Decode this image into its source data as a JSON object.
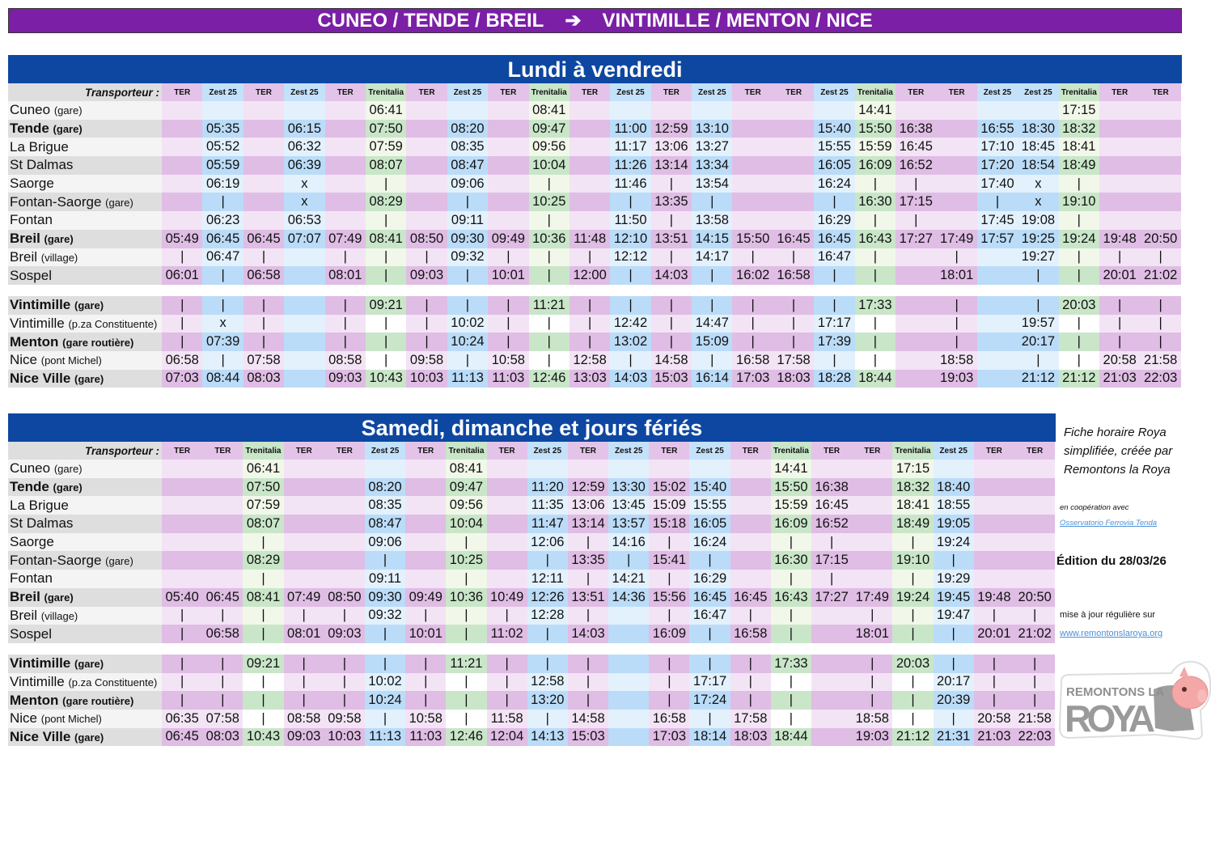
{
  "title": {
    "left": "CUNEO / TENDE / BREIL",
    "arrow": "➔",
    "right": "VINTIMILLE / MENTON / NICE"
  },
  "colors": {
    "title_bg": "#7b1fa6",
    "block_bg": "#0d47a1",
    "TER": "#dfbde4",
    "Zest 25": "#bbdcf8",
    "Trenitalia": "#c9e6c9"
  },
  "transporter_label": "Transporteur :",
  "stations": [
    {
      "name": "Cuneo",
      "suffix": "(gare)",
      "bold": false
    },
    {
      "name": "Tende",
      "suffix": "(gare)",
      "bold": true
    },
    {
      "name": "La Brigue",
      "suffix": "",
      "bold": false
    },
    {
      "name": "St Dalmas",
      "suffix": "",
      "bold": false
    },
    {
      "name": "Saorge",
      "suffix": "",
      "bold": false
    },
    {
      "name": "Fontan-Saorge",
      "suffix": "(gare)",
      "bold": false
    },
    {
      "name": "Fontan",
      "suffix": "",
      "bold": false
    },
    {
      "name": "Breil",
      "suffix": "(gare)",
      "bold": true
    },
    {
      "name": "Breil",
      "suffix": "(village)",
      "bold": false
    },
    {
      "name": "Sospel",
      "suffix": "",
      "bold": false
    },
    {
      "name": "Vintimille",
      "suffix": "(gare)",
      "bold": true
    },
    {
      "name": "Vintimille",
      "suffix": "(p.za Constituente)",
      "bold": false
    },
    {
      "name": "Menton",
      "suffix": "(gare routière)",
      "bold": true
    },
    {
      "name": "Nice",
      "suffix": "(pont Michel)",
      "bold": false
    },
    {
      "name": "Nice Ville",
      "suffix": "(gare)",
      "bold": true
    }
  ],
  "tables": [
    {
      "title": "Lundi à vendredi",
      "carriers": [
        "TER",
        "Zest 25",
        "TER",
        "Zest 25",
        "TER",
        "Trenitalia",
        "TER",
        "Zest 25",
        "TER",
        "Trenitalia",
        "TER",
        "Zest 25",
        "TER",
        "Zest 25",
        "TER",
        "TER",
        "Zest 25",
        "Trenitalia",
        "TER",
        "TER",
        "Zest 25",
        "Zest 25",
        "Trenitalia",
        "TER",
        "TER"
      ],
      "times": [
        [
          "",
          "",
          "",
          "",
          "",
          "06:41",
          "",
          "",
          "",
          "08:41",
          "",
          "",
          "",
          "",
          "",
          "",
          "",
          "14:41",
          "",
          "",
          "",
          "",
          "17:15",
          "",
          ""
        ],
        [
          "",
          "05:35",
          "",
          "06:15",
          "",
          "07:50",
          "",
          "08:20",
          "",
          "09:47",
          "",
          "11:00",
          "12:59",
          "13:10",
          "",
          "",
          "15:40",
          "15:50",
          "16:38",
          "",
          "16:55",
          "18:30",
          "18:32",
          "",
          ""
        ],
        [
          "",
          "05:52",
          "",
          "06:32",
          "",
          "07:59",
          "",
          "08:35",
          "",
          "09:56",
          "",
          "11:17",
          "13:06",
          "13:27",
          "",
          "",
          "15:55",
          "15:59",
          "16:45",
          "",
          "17:10",
          "18:45",
          "18:41",
          "",
          ""
        ],
        [
          "",
          "05:59",
          "",
          "06:39",
          "",
          "08:07",
          "",
          "08:47",
          "",
          "10:04",
          "",
          "11:26",
          "13:14",
          "13:34",
          "",
          "",
          "16:05",
          "16:09",
          "16:52",
          "",
          "17:20",
          "18:54",
          "18:49",
          "",
          ""
        ],
        [
          "",
          "06:19",
          "",
          "x",
          "",
          "|",
          "",
          "09:06",
          "",
          "|",
          "",
          "11:46",
          "|",
          "13:54",
          "",
          "",
          "16:24",
          "|",
          "|",
          "",
          "17:40",
          "x",
          "|",
          "",
          ""
        ],
        [
          "",
          "|",
          "",
          "x",
          "",
          "08:29",
          "",
          "|",
          "",
          "10:25",
          "",
          "|",
          "13:35",
          "|",
          "",
          "",
          "|",
          "16:30",
          "17:15",
          "",
          "|",
          "x",
          "19:10",
          "",
          ""
        ],
        [
          "",
          "06:23",
          "",
          "06:53",
          "",
          "|",
          "",
          "09:11",
          "",
          "|",
          "",
          "11:50",
          "|",
          "13:58",
          "",
          "",
          "16:29",
          "|",
          "|",
          "",
          "17:45",
          "19:08",
          "|",
          "",
          ""
        ],
        [
          "05:49",
          "06:45",
          "06:45",
          "07:07",
          "07:49",
          "08:41",
          "08:50",
          "09:30",
          "09:49",
          "10:36",
          "11:48",
          "12:10",
          "13:51",
          "14:15",
          "15:50",
          "16:45",
          "16:45",
          "16:43",
          "17:27",
          "17:49",
          "17:57",
          "19:25",
          "19:24",
          "19:48",
          "20:50"
        ],
        [
          "|",
          "06:47",
          "|",
          "",
          "|",
          "|",
          "|",
          "09:32",
          "|",
          "|",
          "|",
          "12:12",
          "|",
          "14:17",
          "|",
          "|",
          "16:47",
          "|",
          "",
          "|",
          "",
          "19:27",
          "|",
          "|",
          "|"
        ],
        [
          "06:01",
          "|",
          "06:58",
          "",
          "08:01",
          "|",
          "09:03",
          "|",
          "10:01",
          "|",
          "12:00",
          "|",
          "14:03",
          "|",
          "16:02",
          "16:58",
          "|",
          "|",
          "",
          "18:01",
          "",
          "|",
          "|",
          "20:01",
          "21:02"
        ],
        [
          "|",
          "|",
          "|",
          "",
          "|",
          "09:21",
          "|",
          "|",
          "|",
          "11:21",
          "|",
          "|",
          "|",
          "|",
          "|",
          "|",
          "|",
          "17:33",
          "",
          "|",
          "",
          "|",
          "20:03",
          "|",
          "|"
        ],
        [
          "|",
          "x",
          "|",
          "",
          "|",
          "|",
          "|",
          "10:02",
          "|",
          "|",
          "|",
          "12:42",
          "|",
          "14:47",
          "|",
          "|",
          "17:17",
          "|",
          "",
          "|",
          "",
          "19:57",
          "|",
          "|",
          "|"
        ],
        [
          "|",
          "07:39",
          "|",
          "",
          "|",
          "|",
          "|",
          "10:24",
          "|",
          "|",
          "|",
          "13:02",
          "|",
          "15:09",
          "|",
          "|",
          "17:39",
          "|",
          "",
          "|",
          "",
          "20:17",
          "|",
          "|",
          "|"
        ],
        [
          "06:58",
          "|",
          "07:58",
          "",
          "08:58",
          "|",
          "09:58",
          "|",
          "10:58",
          "|",
          "12:58",
          "|",
          "14:58",
          "|",
          "16:58",
          "17:58",
          "|",
          "|",
          "",
          "18:58",
          "",
          "|",
          "|",
          "20:58",
          "21:58"
        ],
        [
          "07:03",
          "08:44",
          "08:03",
          "",
          "09:03",
          "10:43",
          "10:03",
          "11:13",
          "11:03",
          "12:46",
          "13:03",
          "14:03",
          "15:03",
          "16:14",
          "17:03",
          "18:03",
          "18:28",
          "18:44",
          "",
          "19:03",
          "",
          "21:12",
          "21:12",
          "21:03",
          "22:03"
        ]
      ]
    },
    {
      "title": "Samedi, dimanche et jours fériés",
      "carriers": [
        "TER",
        "TER",
        "Trenitalia",
        "TER",
        "TER",
        "Zest 25",
        "TER",
        "Trenitalia",
        "TER",
        "Zest 25",
        "TER",
        "Zest 25",
        "TER",
        "Zest 25",
        "TER",
        "Trenitalia",
        "TER",
        "TER",
        "Trenitalia",
        "Zest 25",
        "TER",
        "TER"
      ],
      "times": [
        [
          "",
          "",
          "06:41",
          "",
          "",
          "",
          "",
          "08:41",
          "",
          "",
          "",
          "",
          "",
          "",
          "",
          "14:41",
          "",
          "",
          "17:15",
          "",
          "",
          ""
        ],
        [
          "",
          "",
          "07:50",
          "",
          "",
          "08:20",
          "",
          "09:47",
          "",
          "11:20",
          "12:59",
          "13:30",
          "15:02",
          "15:40",
          "",
          "15:50",
          "16:38",
          "",
          "18:32",
          "18:40",
          "",
          ""
        ],
        [
          "",
          "",
          "07:59",
          "",
          "",
          "08:35",
          "",
          "09:56",
          "",
          "11:35",
          "13:06",
          "13:45",
          "15:09",
          "15:55",
          "",
          "15:59",
          "16:45",
          "",
          "18:41",
          "18:55",
          "",
          ""
        ],
        [
          "",
          "",
          "08:07",
          "",
          "",
          "08:47",
          "",
          "10:04",
          "",
          "11:47",
          "13:14",
          "13:57",
          "15:18",
          "16:05",
          "",
          "16:09",
          "16:52",
          "",
          "18:49",
          "19:05",
          "",
          ""
        ],
        [
          "",
          "",
          "|",
          "",
          "",
          "09:06",
          "",
          "|",
          "",
          "12:06",
          "|",
          "14:16",
          "|",
          "16:24",
          "",
          "|",
          "|",
          "",
          "|",
          "19:24",
          "",
          ""
        ],
        [
          "",
          "",
          "08:29",
          "",
          "",
          "|",
          "",
          "10:25",
          "",
          "|",
          "13:35",
          "|",
          "15:41",
          "|",
          "",
          "16:30",
          "17:15",
          "",
          "19:10",
          "|",
          "",
          ""
        ],
        [
          "",
          "",
          "|",
          "",
          "",
          "09:11",
          "",
          "|",
          "",
          "12:11",
          "|",
          "14:21",
          "|",
          "16:29",
          "",
          "|",
          "|",
          "",
          "|",
          "19:29",
          "",
          ""
        ],
        [
          "05:40",
          "06:45",
          "08:41",
          "07:49",
          "08:50",
          "09:30",
          "09:49",
          "10:36",
          "10:49",
          "12:26",
          "13:51",
          "14:36",
          "15:56",
          "16:45",
          "16:45",
          "16:43",
          "17:27",
          "17:49",
          "19:24",
          "19:45",
          "19:48",
          "20:50"
        ],
        [
          "|",
          "|",
          "|",
          "|",
          "|",
          "09:32",
          "|",
          "|",
          "|",
          "12:28",
          "|",
          "",
          "|",
          "16:47",
          "|",
          "|",
          "",
          "|",
          "|",
          "19:47",
          "|",
          "|"
        ],
        [
          "|",
          "06:58",
          "|",
          "08:01",
          "09:03",
          "|",
          "10:01",
          "|",
          "11:02",
          "|",
          "14:03",
          "",
          "16:09",
          "|",
          "16:58",
          "|",
          "",
          "18:01",
          "|",
          "|",
          "20:01",
          "21:02"
        ],
        [
          "|",
          "|",
          "09:21",
          "|",
          "|",
          "|",
          "|",
          "11:21",
          "|",
          "|",
          "|",
          "",
          "|",
          "|",
          "|",
          "17:33",
          "",
          "|",
          "20:03",
          "|",
          "|",
          "|"
        ],
        [
          "|",
          "|",
          "|",
          "|",
          "|",
          "10:02",
          "|",
          "|",
          "|",
          "12:58",
          "|",
          "",
          "|",
          "17:17",
          "|",
          "|",
          "",
          "|",
          "|",
          "20:17",
          "|",
          "|"
        ],
        [
          "|",
          "|",
          "|",
          "|",
          "|",
          "10:24",
          "|",
          "|",
          "|",
          "13:20",
          "|",
          "",
          "|",
          "17:24",
          "|",
          "|",
          "",
          "|",
          "|",
          "20:39",
          "|",
          "|"
        ],
        [
          "06:35",
          "07:58",
          "|",
          "08:58",
          "09:58",
          "|",
          "10:58",
          "|",
          "11:58",
          "|",
          "14:58",
          "",
          "16:58",
          "|",
          "17:58",
          "|",
          "",
          "18:58",
          "|",
          "|",
          "20:58",
          "21:58"
        ],
        [
          "06:45",
          "08:03",
          "10:43",
          "09:03",
          "10:03",
          "11:13",
          "11:03",
          "12:46",
          "12:04",
          "14:13",
          "15:03",
          "",
          "17:03",
          "18:14",
          "18:03",
          "18:44",
          "",
          "19:03",
          "21:12",
          "21:31",
          "21:03",
          "22:03"
        ]
      ]
    }
  ],
  "side": {
    "intro": "Fiche horaire Roya simplifiée, créée par Remontons la Roya",
    "coop_label": "en coopération avec",
    "coop_link": "Osservatorio Ferrovia Tenda",
    "edition": "Édition du 28/03/26",
    "update_label": "mise à jour régulière sur",
    "website": "www.remontonslaroya.org"
  },
  "logo": {
    "line1": "REMONTONS LA",
    "line2": "ROYA",
    "icon": "pig-head-icon"
  }
}
